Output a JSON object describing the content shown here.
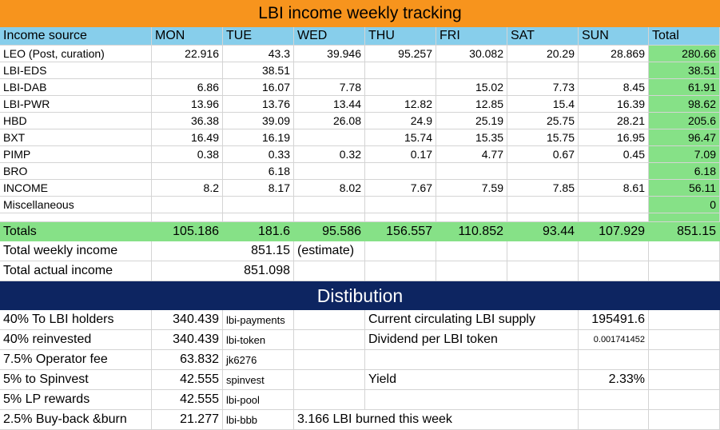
{
  "title": "LBI income weekly tracking",
  "header": [
    "Income source",
    "MON",
    "TUE",
    "WED",
    "THU",
    "FRI",
    "SAT",
    "SUN",
    "Total"
  ],
  "rows": [
    {
      "source": "LEO (Post, curation)",
      "mon": "22.916",
      "tue": "43.3",
      "wed": "39.946",
      "thu": "95.257",
      "fri": "30.082",
      "sat": "20.29",
      "sun": "28.869",
      "total": "280.66"
    },
    {
      "source": "LBI-EDS",
      "mon": "",
      "tue": "38.51",
      "wed": "",
      "thu": "",
      "fri": "",
      "sat": "",
      "sun": "",
      "total": "38.51"
    },
    {
      "source": "LBI-DAB",
      "mon": "6.86",
      "tue": "16.07",
      "wed": "7.78",
      "thu": "",
      "fri": "15.02",
      "sat": "7.73",
      "sun": "8.45",
      "total": "61.91"
    },
    {
      "source": "LBI-PWR",
      "mon": "13.96",
      "tue": "13.76",
      "wed": "13.44",
      "thu": "12.82",
      "fri": "12.85",
      "sat": "15.4",
      "sun": "16.39",
      "total": "98.62"
    },
    {
      "source": "HBD",
      "mon": "36.38",
      "tue": "39.09",
      "wed": "26.08",
      "thu": "24.9",
      "fri": "25.19",
      "sat": "25.75",
      "sun": "28.21",
      "total": "205.6"
    },
    {
      "source": "BXT",
      "mon": "16.49",
      "tue": "16.19",
      "wed": "",
      "thu": "15.74",
      "fri": "15.35",
      "sat": "15.75",
      "sun": "16.95",
      "total": "96.47"
    },
    {
      "source": "PIMP",
      "mon": "0.38",
      "tue": "0.33",
      "wed": "0.32",
      "thu": "0.17",
      "fri": "4.77",
      "sat": "0.67",
      "sun": "0.45",
      "total": "7.09"
    },
    {
      "source": "BRO",
      "mon": "",
      "tue": "6.18",
      "wed": "",
      "thu": "",
      "fri": "",
      "sat": "",
      "sun": "",
      "total": "6.18"
    },
    {
      "source": "INCOME",
      "mon": "8.2",
      "tue": "8.17",
      "wed": "8.02",
      "thu": "7.67",
      "fri": "7.59",
      "sat": "7.85",
      "sun": "8.61",
      "total": "56.11"
    },
    {
      "source": "Miscellaneous",
      "mon": "",
      "tue": "",
      "wed": "",
      "thu": "",
      "fri": "",
      "sat": "",
      "sun": "",
      "total": "0"
    }
  ],
  "totals": {
    "label": "Totals",
    "mon": "105.186",
    "tue": "181.6",
    "wed": "95.586",
    "thu": "156.557",
    "fri": "110.852",
    "sat": "93.44",
    "sun": "107.929",
    "total": "851.15"
  },
  "weekly": {
    "label": "Total weekly income",
    "value": "851.15",
    "note": "(estimate)"
  },
  "actual": {
    "label": "Total actual income",
    "value": "851.098"
  },
  "distribution_title": "Distibution",
  "distribution": [
    {
      "label": "40% To LBI holders",
      "amount": "340.439",
      "account": "lbi-payments",
      "info_label": "Current circulating LBI supply",
      "info_value": "195491.6"
    },
    {
      "label": "40% reinvested",
      "amount": "340.439",
      "account": "lbi-token",
      "info_label": "Dividend per LBI token",
      "info_value": "0.001741452"
    },
    {
      "label": "7.5% Operator fee",
      "amount": "63.832",
      "account": "jk6276",
      "info_label": "",
      "info_value": ""
    },
    {
      "label": "5% to Spinvest",
      "amount": "42.555",
      "account": "spinvest",
      "info_label": "Yield",
      "info_value": "2.33%"
    },
    {
      "label": "5% LP rewards",
      "amount": "42.555",
      "account": "lbi-pool",
      "info_label": "",
      "info_value": ""
    },
    {
      "label": "2.5% Buy-back &burn",
      "amount": "21.277",
      "account": "lbi-bbb",
      "info_label": "3.166 LBI burned this week",
      "info_value": ""
    }
  ],
  "colors": {
    "orange": "#f7941d",
    "sky": "#87ceeb",
    "green": "#86e187",
    "navy": "#0d2561"
  }
}
